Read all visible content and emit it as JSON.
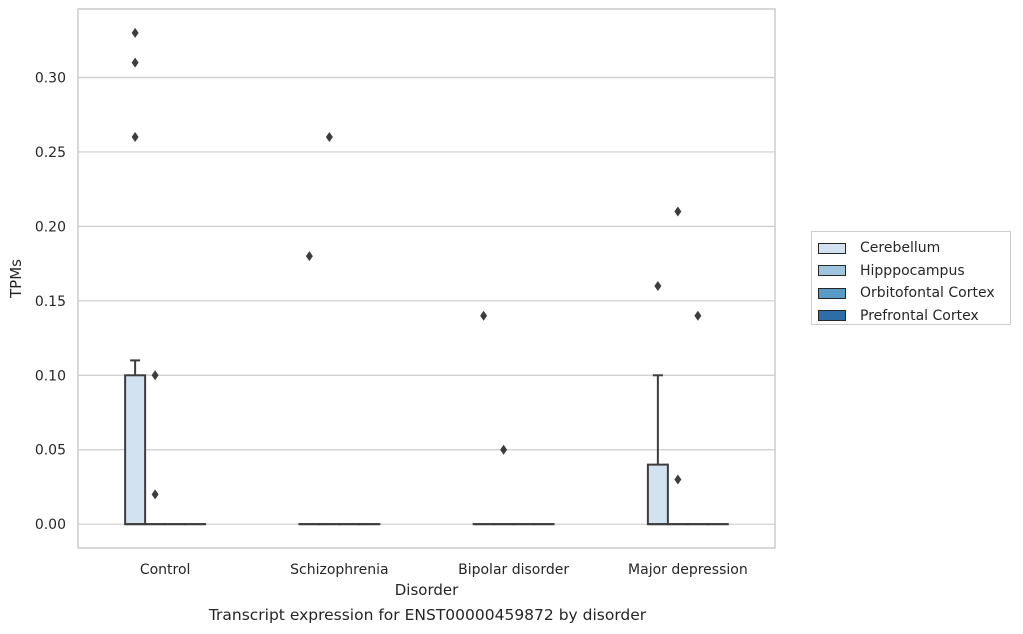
{
  "caption": "Transcript expression for ENST00000459872 by disorder",
  "chart_data": {
    "type": "box",
    "title": "",
    "xlabel": "Disorder",
    "ylabel": "TPMs",
    "categories": [
      "Control",
      "Schizophrenia",
      "Bipolar disorder",
      "Major depression"
    ],
    "ylim": [
      -0.016,
      0.346
    ],
    "yticks": [
      0.0,
      0.05,
      0.1,
      0.15,
      0.2,
      0.25,
      0.3
    ],
    "ytick_labels": [
      "0.00",
      "0.05",
      "0.10",
      "0.15",
      "0.20",
      "0.25",
      "0.30"
    ],
    "grid": true,
    "legend_position": "right",
    "series": [
      {
        "name": "Cerebellum",
        "color": "#d3e2f0",
        "boxes": [
          {
            "category": "Control",
            "min": 0.0,
            "q1": 0.0,
            "median": 0.0,
            "q3": 0.1,
            "max": 0.11,
            "outliers": [
              0.26,
              0.31,
              0.33
            ]
          },
          {
            "category": "Schizophrenia",
            "min": 0.0,
            "q1": 0.0,
            "median": 0.0,
            "q3": 0.0,
            "max": 0.0,
            "outliers": [
              0.18
            ]
          },
          {
            "category": "Bipolar disorder",
            "min": 0.0,
            "q1": 0.0,
            "median": 0.0,
            "q3": 0.0,
            "max": 0.0,
            "outliers": [
              0.14
            ]
          },
          {
            "category": "Major depression",
            "min": 0.0,
            "q1": 0.0,
            "median": 0.0,
            "q3": 0.04,
            "max": 0.1,
            "outliers": [
              0.16
            ]
          }
        ]
      },
      {
        "name": "Hipppocampus",
        "color": "#9ec5de",
        "boxes": [
          {
            "category": "Control",
            "min": 0.0,
            "q1": 0.0,
            "median": 0.0,
            "q3": 0.0,
            "max": 0.0,
            "outliers": [
              0.02,
              0.1
            ]
          },
          {
            "category": "Schizophrenia",
            "min": 0.0,
            "q1": 0.0,
            "median": 0.0,
            "q3": 0.0,
            "max": 0.0,
            "outliers": [
              0.26
            ]
          },
          {
            "category": "Bipolar disorder",
            "min": 0.0,
            "q1": 0.0,
            "median": 0.0,
            "q3": 0.0,
            "max": 0.0,
            "outliers": [
              0.05
            ]
          },
          {
            "category": "Major depression",
            "min": 0.0,
            "q1": 0.0,
            "median": 0.0,
            "q3": 0.0,
            "max": 0.0,
            "outliers": [
              0.03,
              0.21
            ]
          }
        ]
      },
      {
        "name": "Orbitofontal Cortex",
        "color": "#5a9ac6",
        "boxes": [
          {
            "category": "Control",
            "min": 0.0,
            "q1": 0.0,
            "median": 0.0,
            "q3": 0.0,
            "max": 0.0,
            "outliers": []
          },
          {
            "category": "Schizophrenia",
            "min": 0.0,
            "q1": 0.0,
            "median": 0.0,
            "q3": 0.0,
            "max": 0.0,
            "outliers": []
          },
          {
            "category": "Bipolar disorder",
            "min": 0.0,
            "q1": 0.0,
            "median": 0.0,
            "q3": 0.0,
            "max": 0.0,
            "outliers": []
          },
          {
            "category": "Major depression",
            "min": 0.0,
            "q1": 0.0,
            "median": 0.0,
            "q3": 0.0,
            "max": 0.0,
            "outliers": [
              0.14
            ]
          }
        ]
      },
      {
        "name": "Prefrontal Cortex",
        "color": "#2d6ea8",
        "boxes": [
          {
            "category": "Control",
            "min": 0.0,
            "q1": 0.0,
            "median": 0.0,
            "q3": 0.0,
            "max": 0.0,
            "outliers": []
          },
          {
            "category": "Schizophrenia",
            "min": 0.0,
            "q1": 0.0,
            "median": 0.0,
            "q3": 0.0,
            "max": 0.0,
            "outliers": []
          },
          {
            "category": "Bipolar disorder",
            "min": 0.0,
            "q1": 0.0,
            "median": 0.0,
            "q3": 0.0,
            "max": 0.0,
            "outliers": []
          },
          {
            "category": "Major depression",
            "min": 0.0,
            "q1": 0.0,
            "median": 0.0,
            "q3": 0.0,
            "max": 0.0,
            "outliers": []
          }
        ]
      }
    ]
  }
}
